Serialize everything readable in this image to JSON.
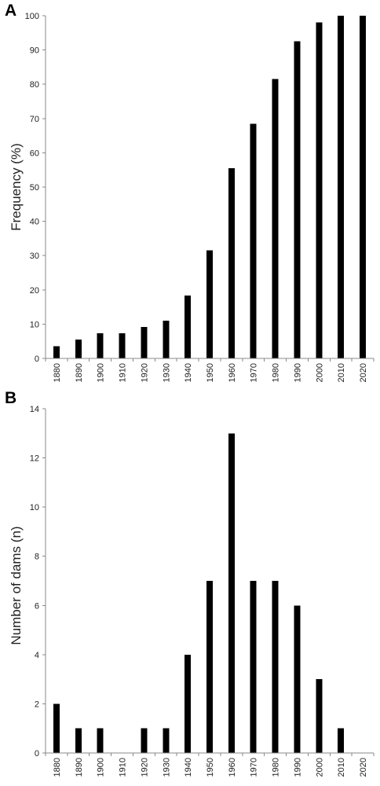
{
  "chart_data": [
    {
      "panel": "A",
      "type": "bar",
      "ylabel": "Frequency (%)",
      "xlabel": "",
      "ylim": [
        0,
        100
      ],
      "yticks": [
        0,
        10,
        20,
        30,
        40,
        50,
        60,
        70,
        80,
        90,
        100
      ],
      "categories": [
        "1880",
        "1890",
        "1900",
        "1910",
        "1920",
        "1930",
        "1940",
        "1950",
        "1960",
        "1970",
        "1980",
        "1990",
        "2000",
        "2010",
        "2020"
      ],
      "values": [
        3.5,
        5.5,
        7.3,
        7.3,
        9.2,
        11,
        18.4,
        31.5,
        55.5,
        68.5,
        81.5,
        92.5,
        98.1,
        100,
        100
      ],
      "bar_color": "#000000"
    },
    {
      "panel": "B",
      "type": "bar",
      "ylabel": "Number of dams (n)",
      "xlabel": "",
      "ylim": [
        0,
        14
      ],
      "yticks": [
        0,
        2,
        4,
        6,
        8,
        10,
        12,
        14
      ],
      "categories": [
        "1880",
        "1890",
        "1900",
        "1910",
        "1920",
        "1930",
        "1940",
        "1950",
        "1960",
        "1970",
        "1980",
        "1990",
        "2000",
        "2010",
        "2020"
      ],
      "values": [
        2,
        1,
        1,
        0,
        1,
        1,
        4,
        7,
        13,
        7,
        7,
        6,
        3,
        1,
        0
      ],
      "bar_color": "#000000"
    }
  ]
}
